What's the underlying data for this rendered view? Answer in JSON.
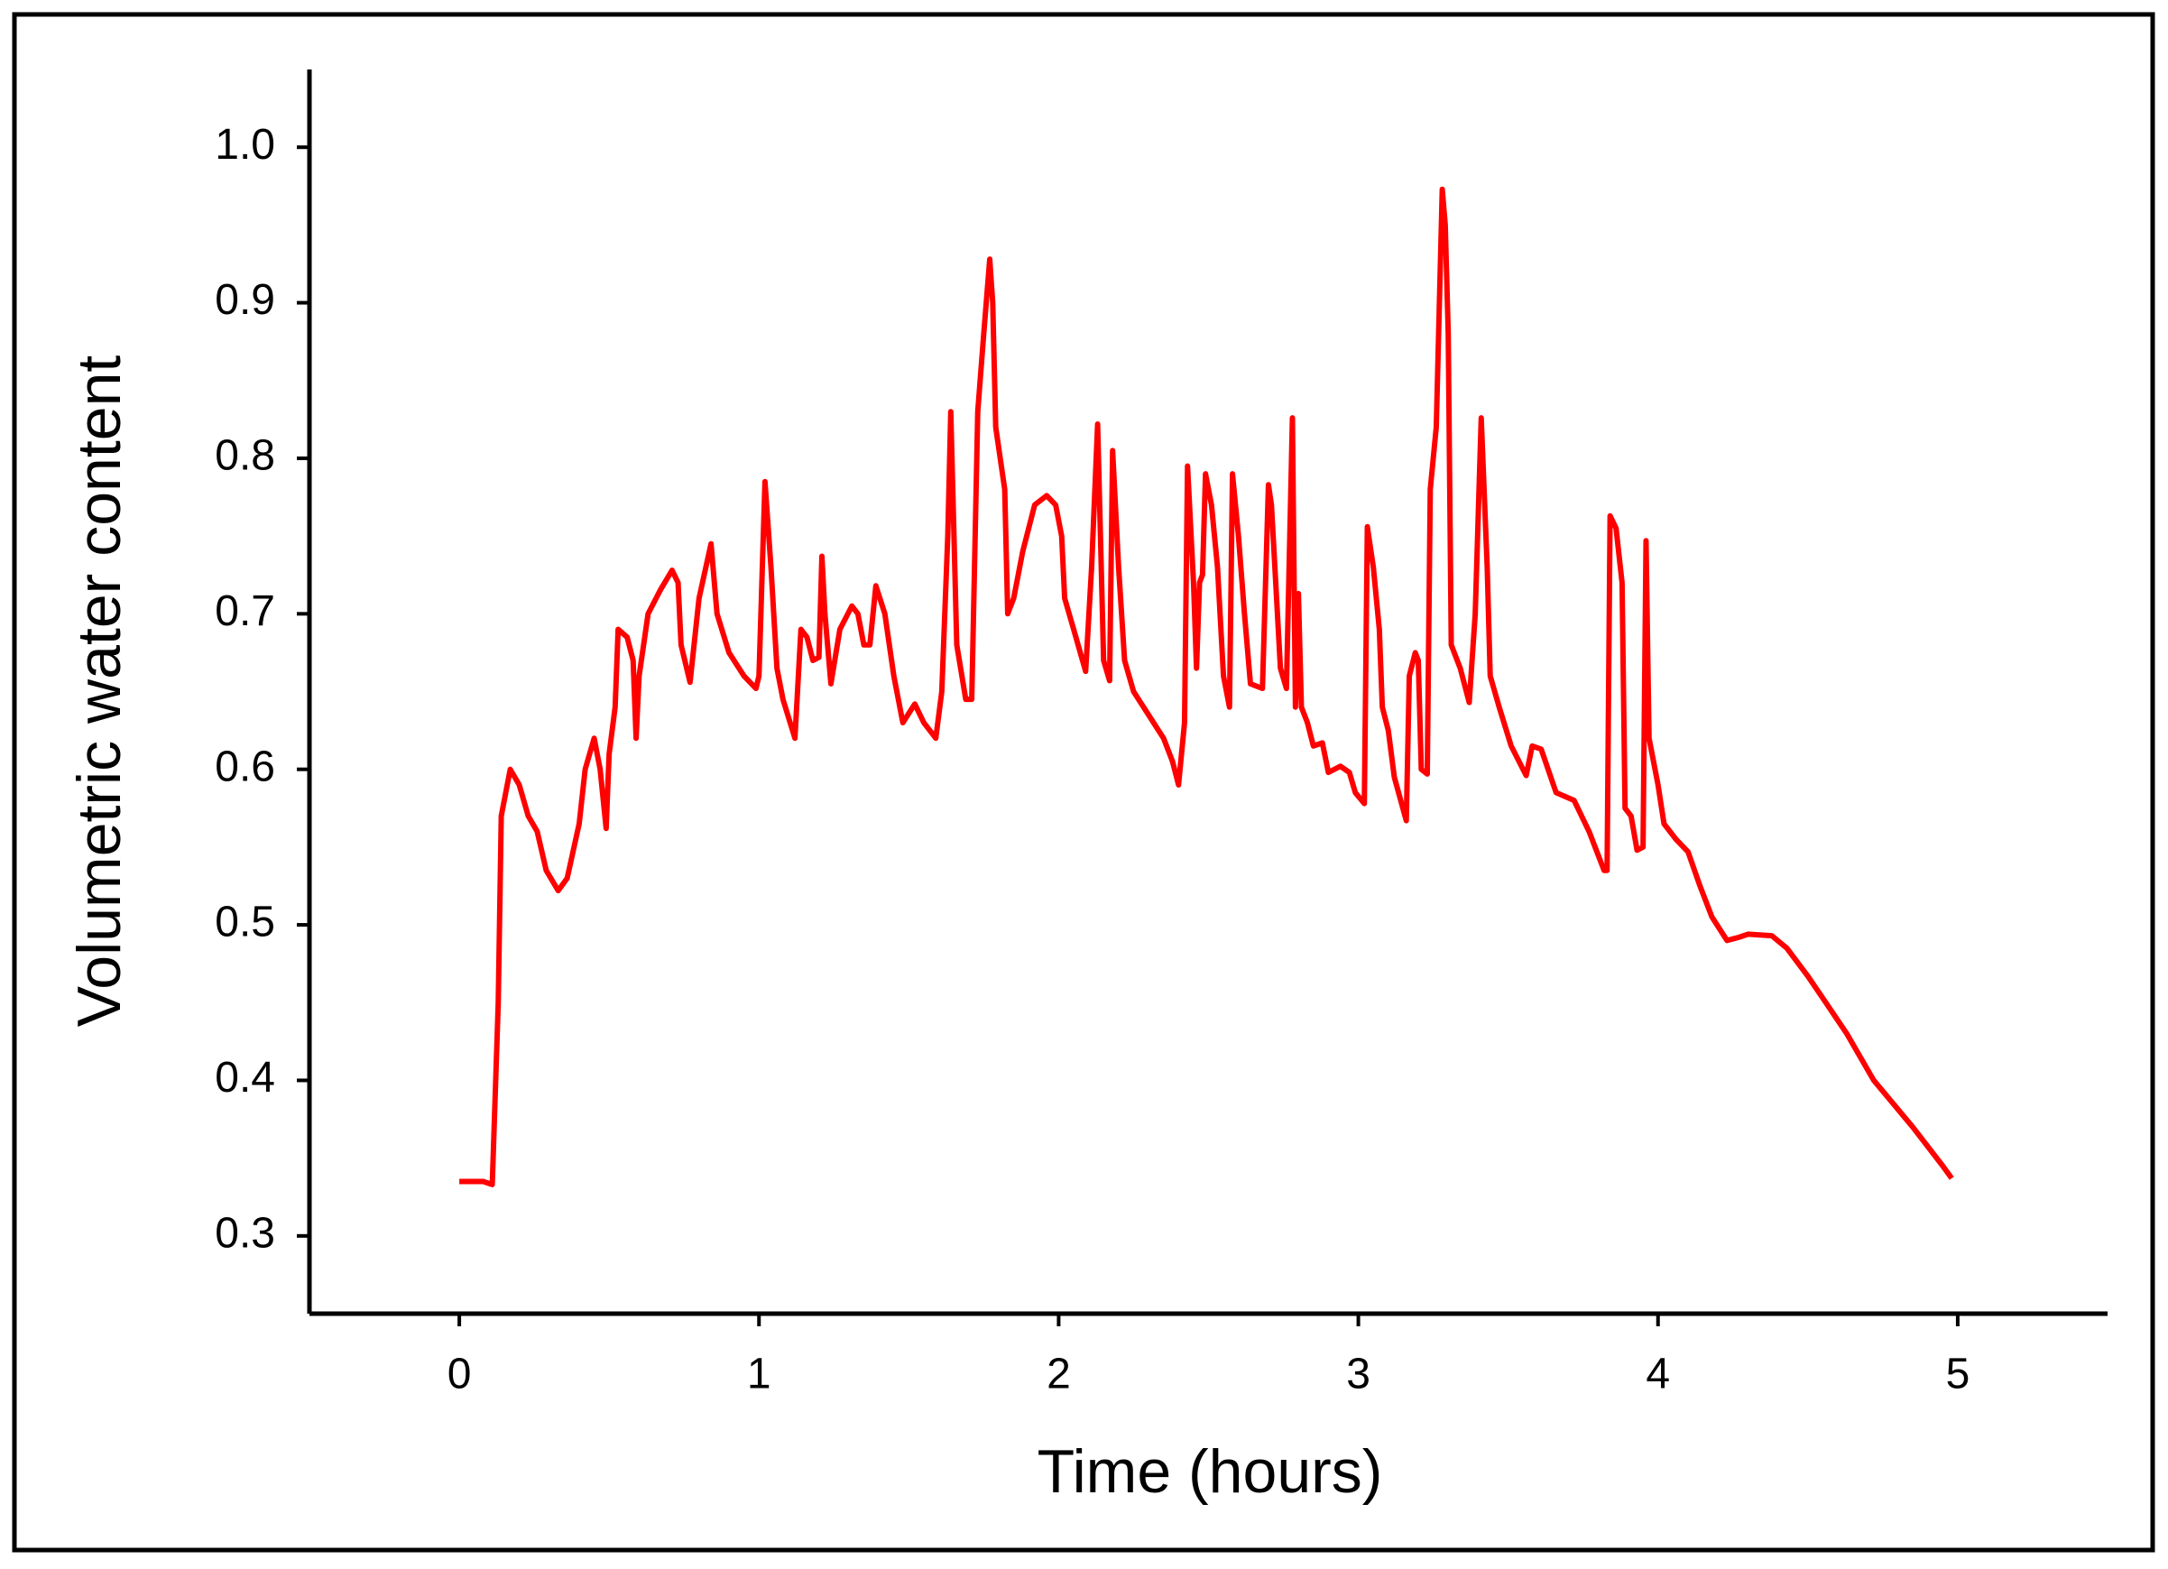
{
  "chart_data": {
    "type": "line",
    "x_label": "Time (hours)",
    "y_label": "Volumetric water content",
    "color": "#ff0000",
    "xlim": [
      -0.5,
      5.5
    ],
    "ylim": [
      0.25,
      1.05
    ],
    "xticks": [
      0,
      1,
      2,
      3,
      4,
      5
    ],
    "yticks": [
      0.3,
      0.4,
      0.5,
      0.6,
      0.7,
      0.8,
      0.9,
      {
        "value": 1,
        "label": "1.0"
      }
    ],
    "grid": false,
    "x": [
      0,
      0.08,
      0.11,
      0.13,
      0.14,
      0.17,
      0.2,
      0.23,
      0.26,
      0.29,
      0.33,
      0.36,
      0.4,
      0.42,
      0.45,
      0.47,
      0.49,
      0.5,
      0.52,
      0.53,
      0.56,
      0.58,
      0.59,
      0.6,
      0.63,
      0.67,
      0.71,
      0.73,
      0.74,
      0.77,
      0.8,
      0.84,
      0.86,
      0.9,
      0.95,
      0.99,
      1.0,
      1.02,
      1.04,
      1.06,
      1.08,
      1.12,
      1.14,
      1.16,
      1.18,
      1.2,
      1.21,
      1.22,
      1.24,
      1.27,
      1.31,
      1.33,
      1.35,
      1.37,
      1.39,
      1.42,
      1.45,
      1.48,
      1.52,
      1.55,
      1.59,
      1.61,
      1.63,
      1.64,
      1.66,
      1.69,
      1.71,
      1.73,
      1.75,
      1.77,
      1.78,
      1.79,
      1.82,
      1.83,
      1.85,
      1.88,
      1.92,
      1.96,
      1.99,
      2.01,
      2.02,
      2.05,
      2.09,
      2.11,
      2.13,
      2.15,
      2.17,
      2.18,
      2.2,
      2.22,
      2.25,
      2.3,
      2.35,
      2.38,
      2.4,
      2.42,
      2.43,
      2.45,
      2.46,
      2.47,
      2.48,
      2.49,
      2.51,
      2.53,
      2.55,
      2.57,
      2.58,
      2.6,
      2.62,
      2.64,
      2.68,
      2.7,
      2.71,
      2.74,
      2.76,
      2.78,
      2.79,
      2.8,
      2.81,
      2.83,
      2.85,
      2.88,
      2.9,
      2.94,
      2.97,
      2.99,
      3.02,
      3.03,
      3.05,
      3.07,
      3.08,
      3.1,
      3.12,
      3.16,
      3.17,
      3.19,
      3.2,
      3.21,
      3.23,
      3.24,
      3.26,
      3.28,
      3.29,
      3.3,
      3.31,
      3.34,
      3.37,
      3.39,
      3.41,
      3.43,
      3.44,
      3.47,
      3.51,
      3.56,
      3.58,
      3.61,
      3.66,
      3.72,
      3.77,
      3.82,
      3.83,
      3.84,
      3.86,
      3.88,
      3.89,
      3.91,
      3.93,
      3.95,
      3.96,
      3.97,
      4.0,
      4.02,
      4.06,
      4.1,
      4.14,
      4.18,
      4.23,
      4.27,
      4.3,
      4.38,
      4.43,
      4.5,
      4.56,
      4.63,
      4.72,
      4.85,
      4.95,
      4.98
    ],
    "values": [
      0.335,
      0.335,
      0.333,
      0.45,
      0.57,
      0.6,
      0.59,
      0.57,
      0.56,
      0.535,
      0.522,
      0.53,
      0.565,
      0.6,
      0.62,
      0.6,
      0.562,
      0.61,
      0.64,
      0.69,
      0.685,
      0.67,
      0.62,
      0.66,
      0.7,
      0.715,
      0.728,
      0.72,
      0.68,
      0.656,
      0.71,
      0.745,
      0.7,
      0.675,
      0.66,
      0.652,
      0.66,
      0.785,
      0.73,
      0.665,
      0.645,
      0.62,
      0.69,
      0.685,
      0.67,
      0.672,
      0.737,
      0.7,
      0.655,
      0.69,
      0.705,
      0.7,
      0.68,
      0.68,
      0.718,
      0.7,
      0.66,
      0.63,
      0.642,
      0.63,
      0.62,
      0.65,
      0.75,
      0.83,
      0.68,
      0.645,
      0.645,
      0.83,
      0.88,
      0.928,
      0.9,
      0.82,
      0.78,
      0.7,
      0.71,
      0.74,
      0.77,
      0.776,
      0.77,
      0.75,
      0.71,
      0.69,
      0.663,
      0.73,
      0.822,
      0.67,
      0.657,
      0.805,
      0.73,
      0.67,
      0.65,
      0.635,
      0.62,
      0.605,
      0.59,
      0.63,
      0.795,
      0.72,
      0.665,
      0.72,
      0.725,
      0.79,
      0.77,
      0.73,
      0.66,
      0.64,
      0.79,
      0.75,
      0.7,
      0.655,
      0.652,
      0.783,
      0.77,
      0.665,
      0.652,
      0.826,
      0.64,
      0.713,
      0.64,
      0.63,
      0.615,
      0.617,
      0.598,
      0.602,
      0.598,
      0.585,
      0.578,
      0.756,
      0.73,
      0.69,
      0.64,
      0.625,
      0.595,
      0.567,
      0.66,
      0.675,
      0.67,
      0.6,
      0.597,
      0.78,
      0.82,
      0.973,
      0.95,
      0.88,
      0.68,
      0.665,
      0.643,
      0.7,
      0.826,
      0.73,
      0.66,
      0.64,
      0.615,
      0.596,
      0.615,
      0.613,
      0.585,
      0.58,
      0.56,
      0.535,
      0.535,
      0.763,
      0.755,
      0.72,
      0.575,
      0.57,
      0.548,
      0.55,
      0.747,
      0.62,
      0.59,
      0.565,
      0.555,
      0.547,
      0.525,
      0.505,
      0.49,
      0.492,
      0.494,
      0.493,
      0.485,
      0.467,
      0.45,
      0.43,
      0.4,
      0.37,
      0.345,
      0.337
    ]
  }
}
